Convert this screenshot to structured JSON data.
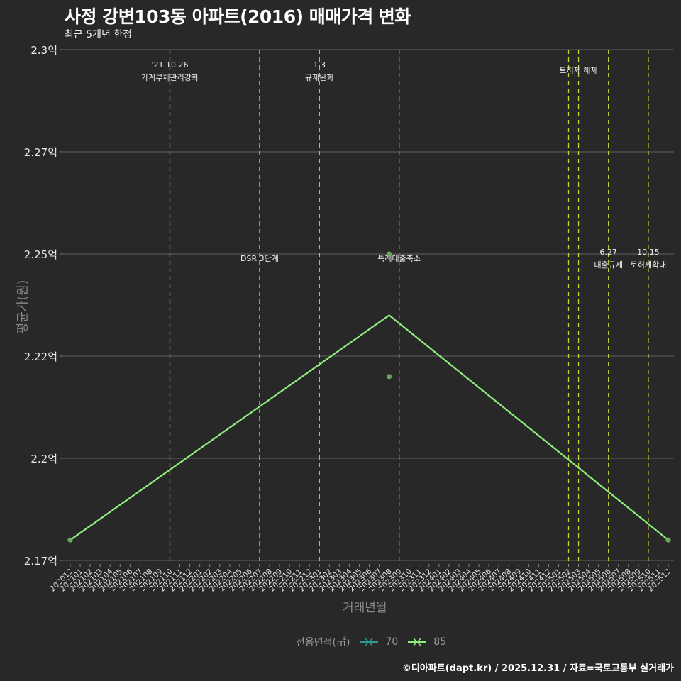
{
  "header": {
    "title": "사정 강변103동 아파트(2016) 매매가격 변화",
    "subtitle": "최근 5개년 한정"
  },
  "legend": {
    "title": "전용면적(㎡)",
    "items": [
      {
        "label": "70",
        "color": "#2a9d8f"
      },
      {
        "label": "85",
        "color": "#90ee7e"
      }
    ]
  },
  "caption": "©디아파트(dapt.kr) / 2025.12.31 / 자료=국토교통부 실거래가",
  "chart_data": {
    "type": "line",
    "title": "사정 강변103동 아파트(2016) 매매가격 변화",
    "subtitle": "최근 5개년 한정",
    "xlabel": "거래년월",
    "ylabel": "평균가(원)",
    "ylim": [
      2.175,
      2.3
    ],
    "y_ticks": [
      {
        "value": 2.3,
        "label": "2.3억"
      },
      {
        "value": 2.275,
        "label": "2.27억"
      },
      {
        "value": 2.25,
        "label": "2.25억"
      },
      {
        "value": 2.225,
        "label": "2.22억"
      },
      {
        "value": 2.2,
        "label": "2.2억"
      },
      {
        "value": 2.175,
        "label": "2.17억"
      }
    ],
    "x_categories": [
      "202012",
      "202101",
      "202102",
      "202103",
      "202104",
      "202105",
      "202106",
      "202107",
      "202108",
      "202109",
      "202110",
      "202111",
      "202112",
      "202201",
      "202202",
      "202203",
      "202204",
      "202205",
      "202206",
      "202207",
      "202208",
      "202209",
      "202210",
      "202211",
      "202212",
      "202301",
      "202302",
      "202303",
      "202304",
      "202305",
      "202306",
      "202307",
      "202308",
      "202309",
      "202310",
      "202311",
      "202312",
      "202401",
      "202402",
      "202403",
      "202404",
      "202405",
      "202406",
      "202407",
      "202408",
      "202409",
      "202410",
      "202411",
      "202412",
      "202501",
      "202502",
      "202503",
      "202504",
      "202505",
      "202506",
      "202507",
      "202508",
      "202509",
      "202510",
      "202511",
      "202512"
    ],
    "series": [
      {
        "name": "70",
        "color": "#2a9d8f",
        "x": [],
        "values": []
      },
      {
        "name": "85",
        "color": "#90ee7e",
        "x": [
          "202012",
          "202308",
          "202512"
        ],
        "values": [
          2.18,
          2.235,
          2.18
        ]
      }
    ],
    "points": [
      {
        "x": "202012",
        "value": 2.18
      },
      {
        "x": "202308",
        "value": 2.25
      },
      {
        "x": "202308",
        "value": 2.22
      },
      {
        "x": "202512",
        "value": 2.18
      }
    ],
    "annotations": [
      {
        "x": "202110",
        "lines": [
          "'21.10.26",
          "가계부채관리강화"
        ],
        "pos": "top"
      },
      {
        "x": "202207",
        "lines": [
          "DSR 3단계"
        ],
        "pos": "mid"
      },
      {
        "x": "202301",
        "lines": [
          "1.3",
          "규제완화"
        ],
        "pos": "top"
      },
      {
        "x": "202309",
        "lines": [
          "특례대출축소"
        ],
        "pos": "mid"
      },
      {
        "x": "202502",
        "lines": [],
        "pos": "none"
      },
      {
        "x": "202503",
        "lines": [
          "토허제 해제"
        ],
        "pos": "top2"
      },
      {
        "x": "202506",
        "lines": [
          "6.27",
          "대출규제"
        ],
        "pos": "mid"
      },
      {
        "x": "202510",
        "lines": [
          "10.15",
          "토허제확대"
        ],
        "pos": "mid"
      }
    ],
    "grid": true,
    "legend_position": "bottom"
  }
}
